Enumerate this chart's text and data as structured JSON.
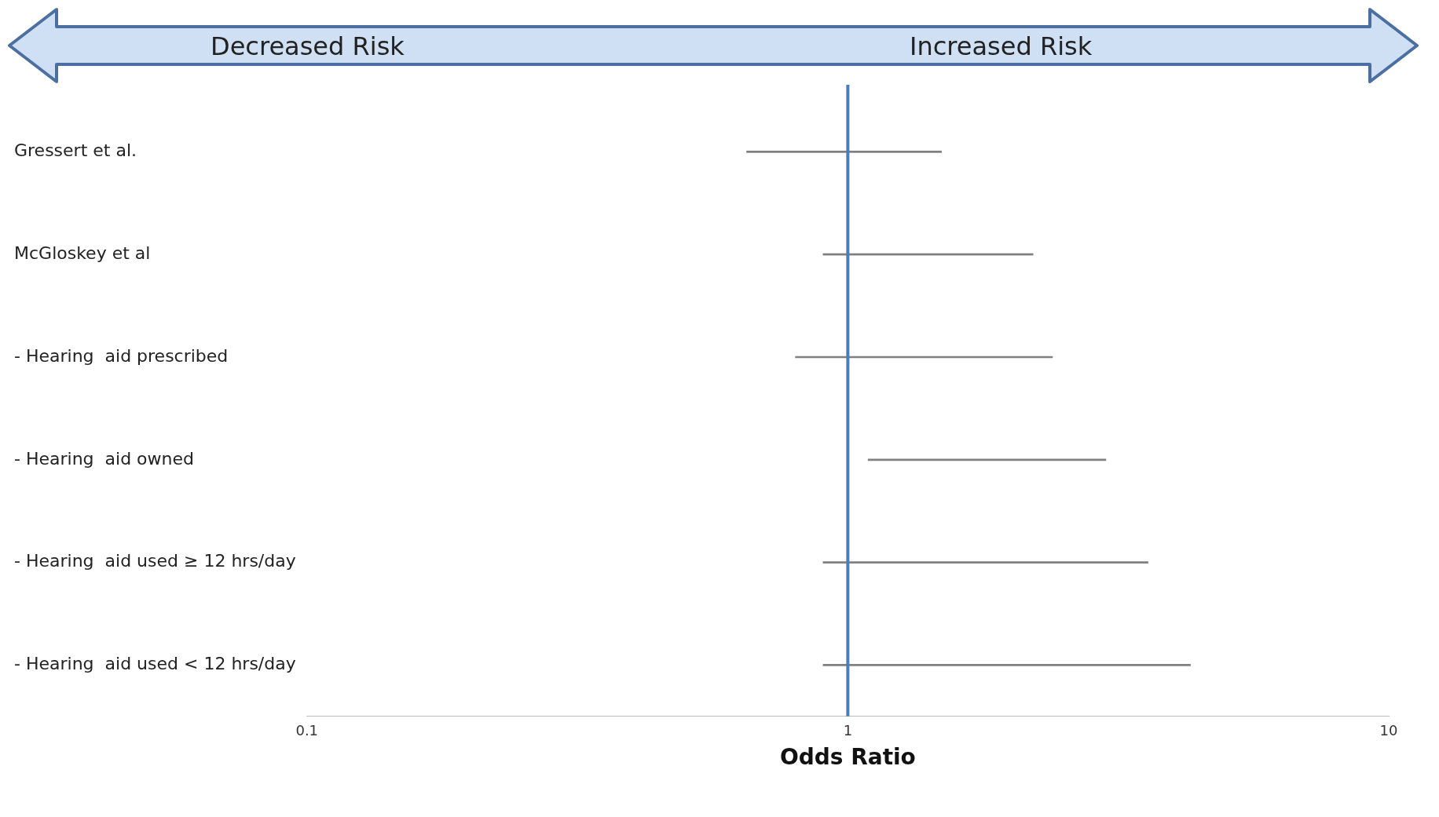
{
  "chart_data": {
    "type": "bar",
    "orientation": "horizontal",
    "xlabel": "Odds Ratio",
    "categories": [
      "Gressert et al.",
      "McGloskey et al",
      "- Hearing  aid prescribed",
      "- Hearing  aid owned",
      "- Hearing  aid used ≥ 12 hrs/day",
      "- Hearing  aid used < 12 hrs/day"
    ],
    "base": [
      0.65,
      0.9,
      0.8,
      1.09,
      0.9,
      0.9
    ],
    "values": [
      0.84,
      1.3,
      1.59,
      1.91,
      2.69,
      3.4
    ],
    "color": "#808080",
    "log": "x",
    "xlim": [
      0.1,
      10
    ],
    "xticks": [
      0.1,
      1,
      10
    ],
    "grid": false,
    "ref_lines": [
      {
        "axis": "x",
        "value": 1,
        "color": "#4a7ebb"
      }
    ],
    "annotations": [
      "Decreased Risk",
      "Increased Risk"
    ]
  }
}
